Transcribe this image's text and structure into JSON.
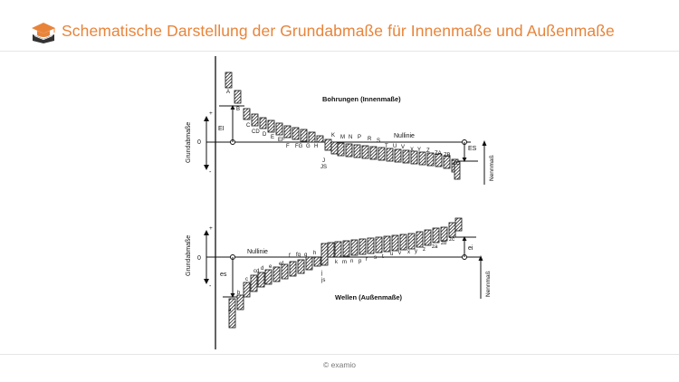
{
  "header": {
    "title": "Schematische Darstellung der Grundabmaße für Innenmaße und Außenmaße"
  },
  "footer": {
    "copyright": "© examio"
  },
  "colors": {
    "accent": "#e8843a",
    "ink": "#111111"
  },
  "icons": {
    "logo": "book-hat-logo-icon"
  },
  "diagram": {
    "top": {
      "heading": "Bohrungen (Innenmaße)",
      "nullinie": "Nullinie",
      "axis_label": "Grundabmaße",
      "plus": "+",
      "zero": "0",
      "minus": "-",
      "ei": "EI",
      "es": "ES",
      "nennmass": "Nennmaß",
      "letters": [
        "A",
        "B",
        "C",
        "CD",
        "D",
        "E",
        "EF",
        "F",
        "FG",
        "G",
        "H",
        "J",
        "JS",
        "K",
        "M",
        "N",
        "P",
        "R",
        "S",
        "T",
        "U",
        "V",
        "X",
        "Y",
        "Z",
        "ZA",
        "ZB",
        "ZC"
      ]
    },
    "bottom": {
      "heading": "Wellen (Außenmaße)",
      "nullinie": "Nullinie",
      "axis_label": "Grundabmaße",
      "plus": "+",
      "zero": "0",
      "minus": "-",
      "es": "es",
      "ei": "ei",
      "nennmass": "Nennmaß",
      "letters": [
        "a",
        "b",
        "c",
        "cd",
        "d",
        "e",
        "ef",
        "f",
        "fg",
        "g",
        "h",
        "j",
        "js",
        "k",
        "m",
        "n",
        "p",
        "r",
        "s",
        "t",
        "u",
        "v",
        "x",
        "y",
        "z",
        "za",
        "zb",
        "zc"
      ]
    }
  }
}
